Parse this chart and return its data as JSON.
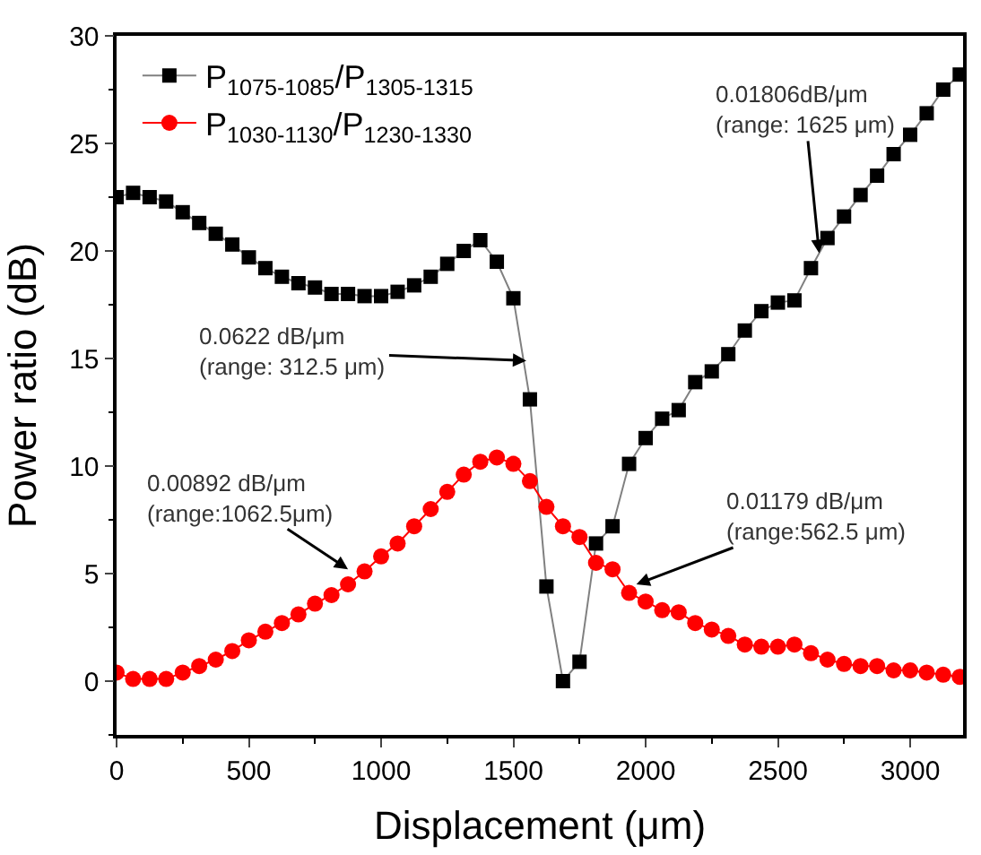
{
  "chart_data": {
    "type": "line",
    "xlabel": "Displacement (μm)",
    "ylabel": "Power ratio (dB)",
    "x": [
      0,
      62.5,
      125,
      187.5,
      250,
      312.5,
      375,
      437.5,
      500,
      562.5,
      625,
      687.5,
      750,
      812.5,
      875,
      937.5,
      1000,
      1062.5,
      1125,
      1187.5,
      1250,
      1312.5,
      1375,
      1437.5,
      1500,
      1562.5,
      1625,
      1687.5,
      1750,
      1812.5,
      1875,
      1937.5,
      2000,
      2062.5,
      2125,
      2187.5,
      2250,
      2312.5,
      2375,
      2437.5,
      2500,
      2562.5,
      2625,
      2687.5,
      2750,
      2812.5,
      2875,
      2937.5,
      3000,
      3062.5,
      3125,
      3187.5
    ],
    "series": [
      {
        "name": "P$_{1075-1085}$/P$_{1305-1315}$",
        "color": "#000000",
        "marker": "square",
        "values": [
          22.5,
          22.7,
          22.5,
          22.3,
          21.8,
          21.3,
          20.8,
          20.3,
          19.7,
          19.2,
          18.8,
          18.5,
          18.3,
          18.0,
          18.0,
          17.9,
          17.9,
          18.1,
          18.4,
          18.8,
          19.4,
          20.0,
          20.5,
          19.5,
          17.8,
          13.1,
          4.4,
          0,
          0.9,
          6.4,
          7.2,
          10.1,
          11.3,
          12.2,
          12.6,
          13.9,
          14.4,
          15.2,
          16.3,
          17.2,
          17.6,
          17.7,
          19.2,
          20.6,
          21.6,
          22.6,
          23.5,
          24.5,
          25.4,
          26.4,
          27.5,
          28.2
        ]
      },
      {
        "name": "P$_{1030-1130}$/P$_{1230-1330}$",
        "color": "#ff0000",
        "marker": "circle",
        "values": [
          0.4,
          0.1,
          0.1,
          0.1,
          0.4,
          0.7,
          1.0,
          1.4,
          1.9,
          2.3,
          2.7,
          3.1,
          3.6,
          4.0,
          4.5,
          5.1,
          5.8,
          6.4,
          7.2,
          8.0,
          8.8,
          9.6,
          10.2,
          10.4,
          10.1,
          9.3,
          8.1,
          7.2,
          6.7,
          5.5,
          5.2,
          4.1,
          3.7,
          3.3,
          3.2,
          2.7,
          2.4,
          2.1,
          1.7,
          1.6,
          1.6,
          1.7,
          1.3,
          1.0,
          0.8,
          0.7,
          0.7,
          0.5,
          0.5,
          0.4,
          0.3,
          0.2
        ]
      }
    ],
    "xlim": [
      0,
      3200
    ],
    "xticks": [
      0,
      500,
      1000,
      1500,
      2000,
      2500,
      3000
    ],
    "ylim": [
      -2.5,
      30
    ],
    "yticks": [
      0,
      5,
      10,
      15,
      20,
      25,
      30
    ],
    "legend": "top left",
    "annotations": [
      {
        "text": "0.0622 dB/μm\n(range: 312.5 μm)",
        "x": 1549,
        "y": 14.9
      },
      {
        "text": "0.01806dB/μm\n(range: 1625 μm)",
        "x": 2656,
        "y": 19.9
      },
      {
        "text": "0.00892 dB/μm\n(range:1062.5μm)",
        "x": 875,
        "y": 5.2
      },
      {
        "text": "0.01179 dB/μm\n(range:562.5 μm)",
        "x": 1965,
        "y": 4.5
      }
    ]
  }
}
